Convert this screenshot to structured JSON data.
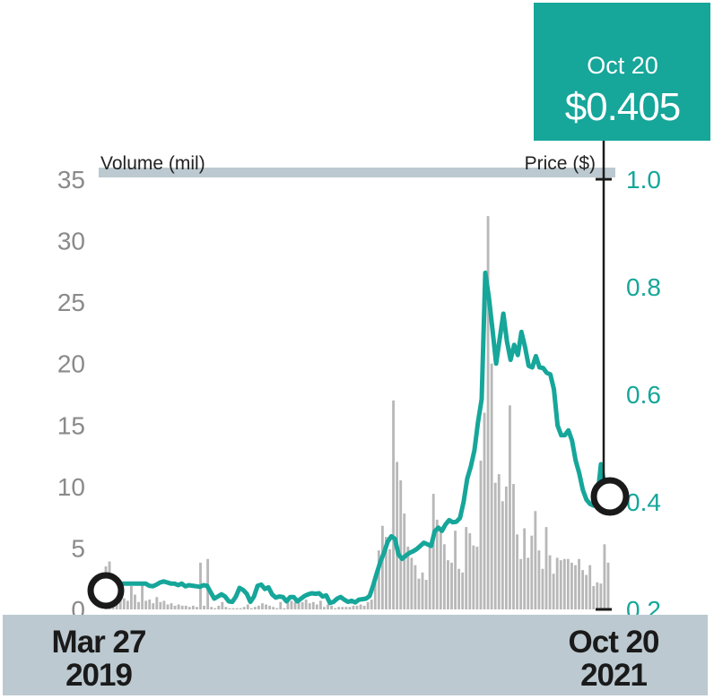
{
  "colors": {
    "price_line": "#16a69a",
    "volume_bar": "#b8b8b8",
    "callout_bg": "#16a69a",
    "header_band": "#bcc9d0",
    "footer_band": "#bcc9d0",
    "left_ticks": "#8a8a8a",
    "right_ticks": "#16a69a"
  },
  "callout": {
    "date": "Oct 20",
    "price": "$0.405"
  },
  "footer": {
    "start_date_line1": "Mar 27",
    "start_date_line2": "2019",
    "end_date_line1": "Oct 20",
    "end_date_line2": "2021"
  },
  "chart_data": {
    "type": "line",
    "x_range": [
      "2019-03-27",
      "2021-10-20"
    ],
    "left_axis": {
      "label": "Volume (mil)",
      "ticks": [
        "0",
        "5",
        "10",
        "15",
        "20",
        "25",
        "30",
        "35"
      ],
      "ylim": [
        0,
        35
      ]
    },
    "right_axis": {
      "label": "Price ($)",
      "ticks": [
        "0.2",
        "0.4",
        "0.6",
        "0.8",
        "1.0"
      ],
      "ylim": [
        0.2,
        1.0
      ]
    },
    "grid": false,
    "series": [
      {
        "kind": "bar",
        "axis": "left",
        "values": [
          3.5,
          3.9,
          2.2,
          0.8,
          1.8,
          0.9,
          0.7,
          1.9,
          1.2,
          0.6,
          2.1,
          0.7,
          0.8,
          0.5,
          1.0,
          0.6,
          0.7,
          0.4,
          0.5,
          0.3,
          0.4,
          0.3,
          0.3,
          0.2,
          0.3,
          0.2,
          3.8,
          0.3,
          4.1,
          0.2,
          0.1,
          0.3,
          0.6,
          0.2,
          0.1,
          0.1,
          0.1,
          0.1,
          0.2,
          0.4,
          0.1,
          0.2,
          0.3,
          0.5,
          0.4,
          0.3,
          0.2,
          0.1,
          0.6,
          0.1,
          0.8,
          0.7,
          0.6,
          0.8,
          0.6,
          0.8,
          0.5,
          0.6,
          0.4,
          0.7,
          0.2,
          0.4,
          0.3,
          0.1,
          0.2,
          0.2,
          0.2,
          0.2,
          0.3,
          0.3,
          0.4,
          0.3,
          0.6,
          0.8,
          2.6,
          4.8,
          6.8,
          5.9,
          4.9,
          17.0,
          12.0,
          10.5,
          7.8,
          5.1,
          4.2,
          3.6,
          2.5,
          3.0,
          2.4,
          5.3,
          9.4,
          7.3,
          6.4,
          5.3,
          4.0,
          3.8,
          6.4,
          3.3,
          3.0,
          6.7,
          6.2,
          5.2,
          5.1,
          12.1,
          16.0,
          32.0,
          20.0,
          10.3,
          11.0,
          8.8,
          10.0,
          16.6,
          10.2,
          6.1,
          4.1,
          6.6,
          4.2,
          6.0,
          8.0,
          4.8,
          3.3,
          6.7,
          4.4,
          2.9,
          4.2,
          4.0,
          4.1,
          4.1,
          3.8,
          3.6,
          4.1,
          3.2,
          2.8,
          3.6,
          1.9,
          2.2,
          2.1,
          5.3,
          3.8
        ]
      },
      {
        "kind": "line",
        "axis": "right",
        "values": [
          0.235,
          0.245,
          0.248,
          0.248,
          0.248,
          0.248,
          0.248,
          0.248,
          0.248,
          0.248,
          0.248,
          0.248,
          0.244,
          0.243,
          0.246,
          0.25,
          0.252,
          0.25,
          0.248,
          0.248,
          0.245,
          0.248,
          0.243,
          0.245,
          0.244,
          0.243,
          0.242,
          0.245,
          0.244,
          0.232,
          0.22,
          0.224,
          0.228,
          0.224,
          0.215,
          0.214,
          0.224,
          0.24,
          0.236,
          0.229,
          0.214,
          0.224,
          0.244,
          0.246,
          0.238,
          0.241,
          0.228,
          0.222,
          0.224,
          0.223,
          0.215,
          0.223,
          0.223,
          0.215,
          0.22,
          0.225,
          0.228,
          0.23,
          0.229,
          0.23,
          0.224,
          0.226,
          0.212,
          0.214,
          0.22,
          0.223,
          0.218,
          0.214,
          0.216,
          0.213,
          0.218,
          0.219,
          0.22,
          0.225,
          0.245,
          0.268,
          0.289,
          0.306,
          0.326,
          0.336,
          0.331,
          0.302,
          0.294,
          0.3,
          0.305,
          0.308,
          0.312,
          0.318,
          0.324,
          0.321,
          0.318,
          0.345,
          0.352,
          0.346,
          0.358,
          0.366,
          0.362,
          0.363,
          0.37,
          0.4,
          0.443,
          0.466,
          0.496,
          0.549,
          0.591,
          0.826,
          0.78,
          0.72,
          0.657,
          0.704,
          0.75,
          0.698,
          0.664,
          0.692,
          0.673,
          0.716,
          0.688,
          0.653,
          0.65,
          0.671,
          0.65,
          0.649,
          0.64,
          0.637,
          0.609,
          0.542,
          0.524,
          0.524,
          0.533,
          0.514,
          0.477,
          0.453,
          0.422,
          0.404,
          0.396,
          0.393,
          0.406,
          0.47,
          0.432,
          0.405
        ]
      }
    ],
    "annotations": [
      "Oct 20",
      "$0.405"
    ]
  }
}
